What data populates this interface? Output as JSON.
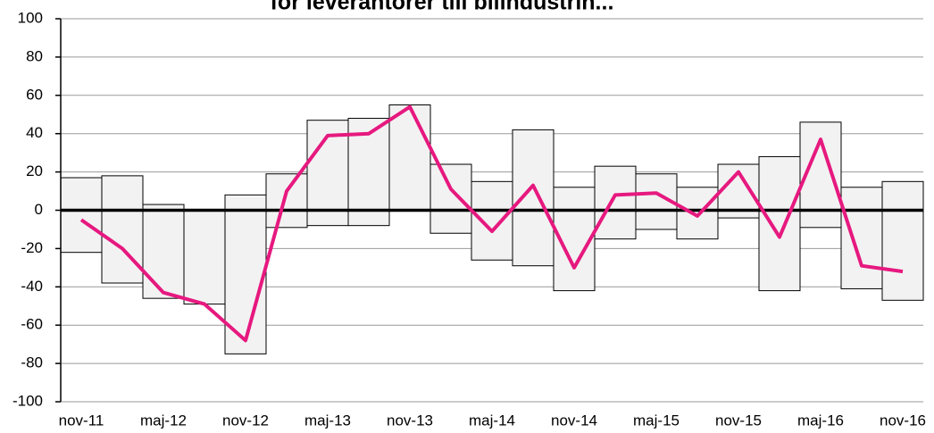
{
  "chart_data": {
    "type": "range-bar-line",
    "title": "för leverantörer till bilindustrin...",
    "categories": [
      "nov-11",
      null,
      "maj-12",
      null,
      "nov-12",
      null,
      "maj-13",
      null,
      "nov-13",
      null,
      "maj-14",
      null,
      "nov-14",
      null,
      "maj-15",
      null,
      "nov-15",
      null,
      "maj-16",
      null,
      "nov-16"
    ],
    "bars": {
      "color": "#f2f2f2",
      "high": [
        17,
        18,
        3,
        0,
        8,
        19,
        47,
        48,
        55,
        24,
        15,
        42,
        12,
        23,
        19,
        12,
        24,
        28,
        46,
        12,
        15
      ],
      "low": [
        -22,
        -38,
        -46,
        -49,
        -75,
        -9,
        -8,
        -8,
        0,
        -12,
        -26,
        -29,
        -42,
        -15,
        -10,
        -15,
        -4,
        -42,
        -9,
        -41,
        -47
      ]
    },
    "line": {
      "color": "#e6197f",
      "values": [
        -5,
        -20,
        -43,
        -49,
        -68,
        10,
        39,
        40,
        54,
        11,
        -11,
        13,
        -30,
        8,
        9,
        -3,
        20,
        -14,
        37,
        -29,
        -32
      ]
    },
    "ylim": [
      -100,
      100
    ],
    "yticks": [
      -100,
      -80,
      -60,
      -40,
      -20,
      0,
      20,
      40,
      60,
      80,
      100
    ],
    "grid": true
  }
}
